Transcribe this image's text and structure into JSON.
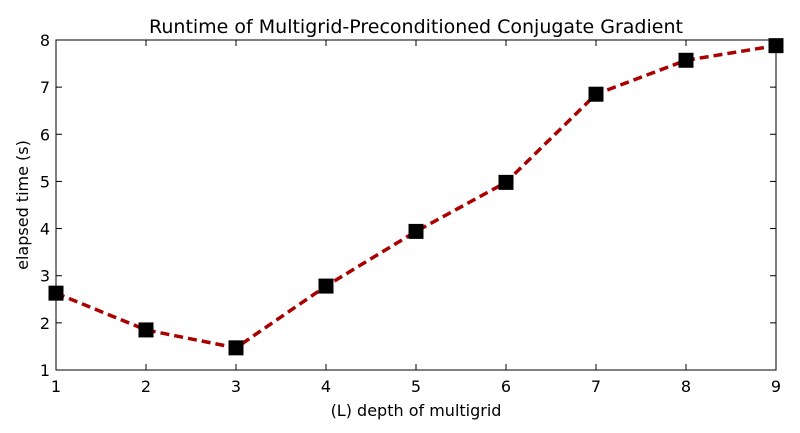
{
  "chart_data": {
    "type": "line",
    "title": "Runtime of Multigrid-Preconditioned Conjugate Gradient",
    "xlabel": "(L) depth of multigrid",
    "ylabel": "elapsed time (s)",
    "xlim": [
      1,
      9
    ],
    "ylim": [
      1,
      8
    ],
    "xticks": [
      1,
      2,
      3,
      4,
      5,
      6,
      7,
      8,
      9
    ],
    "yticks": [
      1,
      2,
      3,
      4,
      5,
      6,
      7,
      8
    ],
    "grid": false,
    "series": [
      {
        "x": [
          1,
          2,
          3,
          4,
          5,
          6,
          7,
          8,
          9
        ],
        "y": [
          2.63,
          1.85,
          1.47,
          2.78,
          3.94,
          4.98,
          6.85,
          7.57,
          7.88
        ],
        "line_color": "#aa0000",
        "line_style": "dashed",
        "marker": "square",
        "marker_color": "#000000"
      }
    ]
  }
}
